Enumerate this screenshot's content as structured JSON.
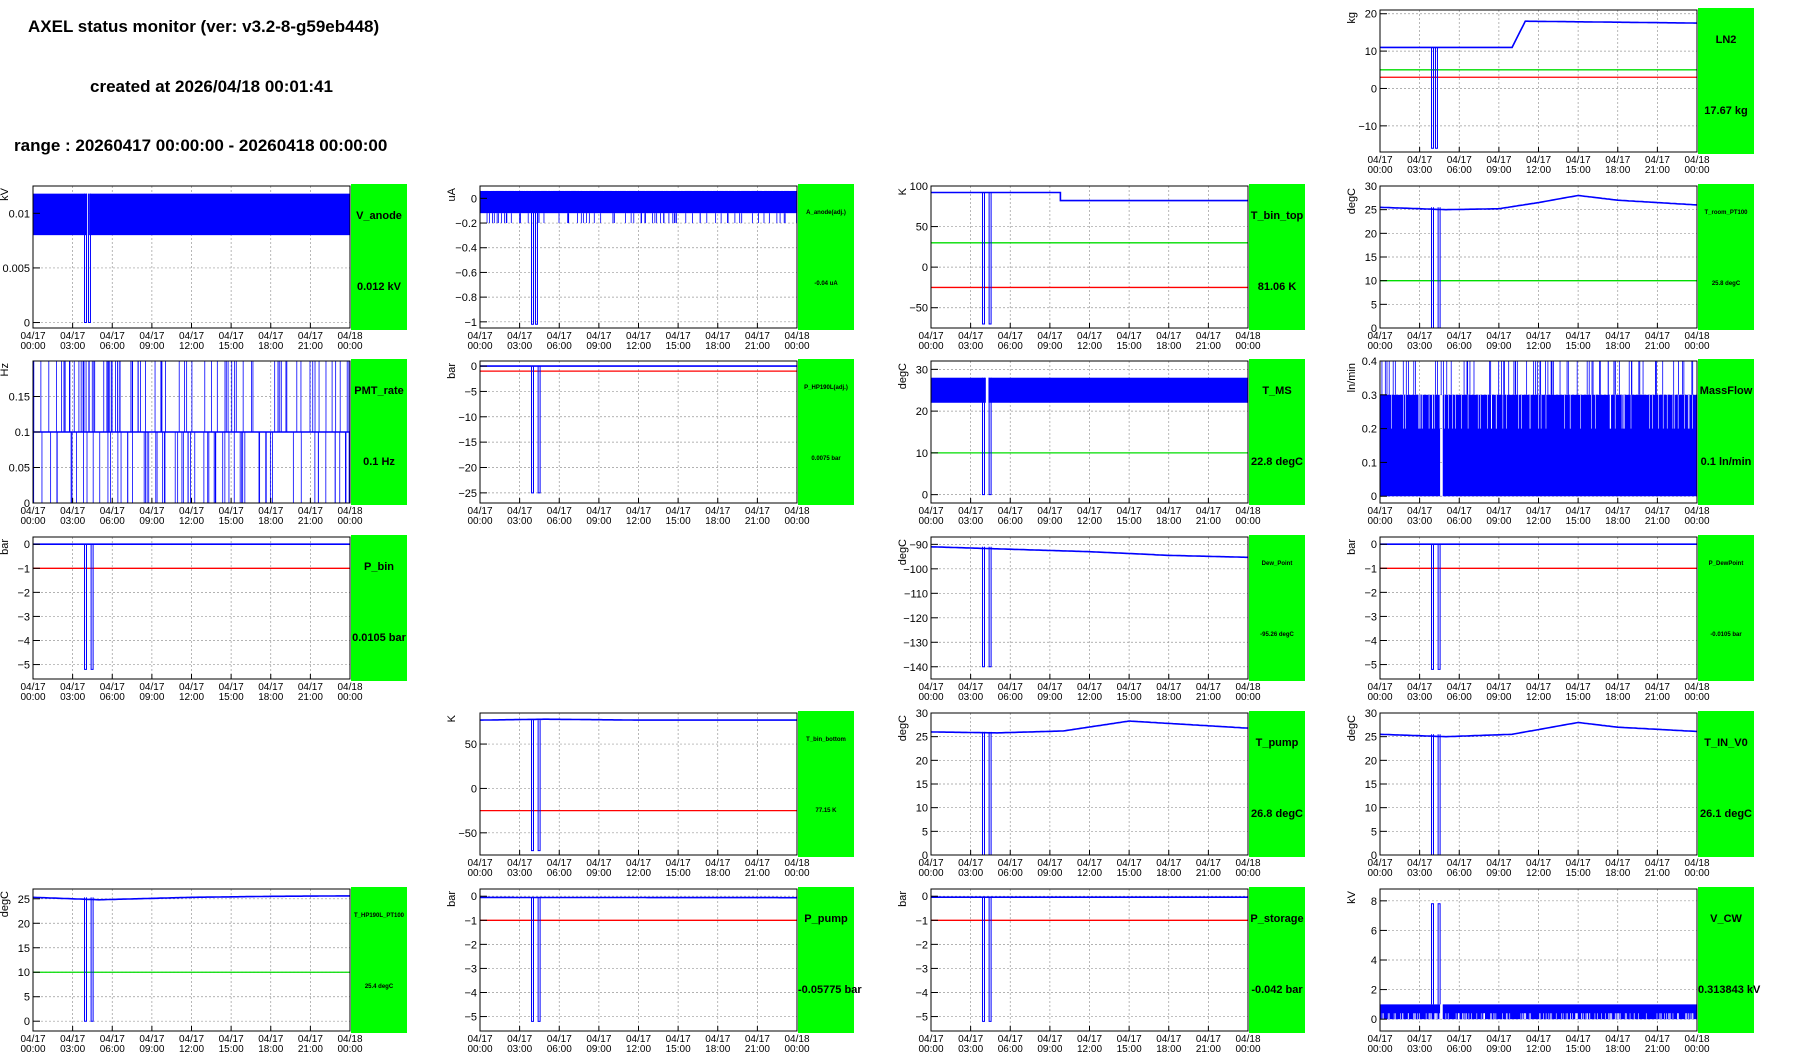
{
  "header": {
    "title": "AXEL status monitor (ver: v3.2-8-g59eb448)",
    "created": "created at 2026/04/18 00:01:41",
    "range": "range : 20260417 00:00:00 - 20260418 00:00:00"
  },
  "colors": {
    "data": "#0000ff",
    "upper_limit": "#00dd00",
    "lower_limit": "#ff0000",
    "label_box": "#00ff00"
  },
  "time_ticks": [
    "04/17\n00:00",
    "04/17\n03:00",
    "04/17\n06:00",
    "04/17\n09:00",
    "04/17\n12:00",
    "04/17\n15:00",
    "04/17\n18:00",
    "04/17\n21:00",
    "04/18\n00:00"
  ],
  "chart_data": [
    {
      "id": "LN2",
      "type": "line",
      "name": "LN2",
      "value": "17.67 kg",
      "ylabel": "kg",
      "ylim": [
        -17,
        21
      ],
      "yticks": [
        -10,
        0,
        10,
        20
      ],
      "ytick_labels": [
        "−10",
        "0",
        "10",
        "20"
      ],
      "green": 5,
      "red": 3,
      "style": "line",
      "base": [
        [
          0,
          11
        ],
        [
          8,
          11
        ],
        [
          9,
          11
        ],
        [
          10,
          11
        ],
        [
          11,
          18
        ],
        [
          24,
          17.5
        ]
      ],
      "dips": [
        3.9,
        4.2
      ],
      "dip_to": -16,
      "small": false
    },
    {
      "id": "V_anode",
      "type": "line",
      "name": "V_anode",
      "value": "0.012 kV",
      "ylabel": "kV",
      "ylim": [
        -0.0005,
        0.0125
      ],
      "yticks": [
        0,
        0.005,
        0.01
      ],
      "ytick_labels": [
        "0",
        "0.005",
        "0.01"
      ],
      "green": null,
      "red": null,
      "style": "band",
      "band": [
        0.008,
        0.0118
      ],
      "gap": [
        4.1,
        4.25
      ],
      "dips": [
        3.9,
        4.2
      ],
      "dip_to": 0,
      "small": false
    },
    {
      "id": "A_anode",
      "type": "line",
      "name": "A_anode(adj.)",
      "value": "-0.04 uA",
      "ylabel": "uA",
      "ylim": [
        -1.05,
        0.1
      ],
      "yticks": [
        -1,
        -0.8,
        -0.6,
        -0.4,
        -0.2,
        0
      ],
      "ytick_labels": [
        "−1",
        "−0.8",
        "−0.6",
        "−0.4",
        "−0.2",
        "0"
      ],
      "green": null,
      "red": null,
      "style": "bandspikes",
      "band": [
        -0.12,
        0.06
      ],
      "spike_lo": -0.2,
      "dips": [
        3.9,
        4.2
      ],
      "dip_to": -1.02,
      "small": true
    },
    {
      "id": "T_bin_top",
      "type": "line",
      "name": "T_bin_top",
      "value": "81.06 K",
      "ylabel": "K",
      "ylim": [
        -75,
        100
      ],
      "yticks": [
        -50,
        0,
        50,
        100
      ],
      "ytick_labels": [
        "−50",
        "0",
        "50",
        "100"
      ],
      "green": 30,
      "red": -25,
      "style": "line",
      "base": [
        [
          0,
          92
        ],
        [
          9.8,
          92
        ],
        [
          9.8,
          82
        ],
        [
          24,
          82
        ]
      ],
      "dips": [
        3.9,
        4.4
      ],
      "dip_to": -70,
      "small": false
    },
    {
      "id": "T_room",
      "type": "line",
      "name": "T_room_PT100",
      "value": "25.8 degC",
      "ylabel": "degC",
      "ylim": [
        0,
        30
      ],
      "yticks": [
        0,
        5,
        10,
        15,
        20,
        25,
        30
      ],
      "ytick_labels": [
        "0",
        "5",
        "10",
        "15",
        "20",
        "25",
        "30"
      ],
      "green": 10,
      "red": null,
      "style": "line",
      "base": [
        [
          0,
          25.5
        ],
        [
          5,
          25
        ],
        [
          9,
          25.2
        ],
        [
          12,
          26.5
        ],
        [
          15,
          28
        ],
        [
          18,
          27
        ],
        [
          24,
          26
        ]
      ],
      "dips": [
        3.9,
        4.4
      ],
      "dip_to": 0,
      "small": true
    },
    {
      "id": "PMT_rate",
      "type": "line",
      "name": "PMT_rate",
      "value": "0.1 Hz",
      "ylabel": "Hz",
      "ylim": [
        0,
        0.2
      ],
      "yticks": [
        0,
        0.05,
        0.1,
        0.15
      ],
      "ytick_labels": [
        "0",
        "0.05",
        "0.1",
        "0.15"
      ],
      "green": null,
      "red": null,
      "style": "pmt",
      "base": [
        [
          0,
          0.1
        ],
        [
          24,
          0.1
        ]
      ],
      "dips": [],
      "dip_to": 0,
      "small": false
    },
    {
      "id": "P_HP190L",
      "type": "line",
      "name": "P_HP190L(adj.)",
      "value": "0.0075 bar",
      "ylabel": "bar",
      "ylim": [
        -27,
        1
      ],
      "yticks": [
        -25,
        -20,
        -15,
        -10,
        -5,
        0
      ],
      "ytick_labels": [
        "−25",
        "−20",
        "−15",
        "−10",
        "−5",
        "0"
      ],
      "green": null,
      "red": -1,
      "style": "line",
      "base": [
        [
          0,
          0
        ],
        [
          24,
          0
        ]
      ],
      "dips": [
        3.9,
        4.4
      ],
      "dip_to": -25,
      "small": true
    },
    {
      "id": "T_MS",
      "type": "line",
      "name": "T_MS",
      "value": "22.8 degC",
      "ylabel": "degC",
      "ylim": [
        -2,
        32
      ],
      "yticks": [
        0,
        10,
        20,
        30
      ],
      "ytick_labels": [
        "0",
        "10",
        "20",
        "30"
      ],
      "green": 10,
      "red": null,
      "style": "band",
      "band": [
        22,
        28
      ],
      "gap": [
        4.15,
        4.35
      ],
      "dips": [
        3.9,
        4.4
      ],
      "dip_to": 0,
      "small": false
    },
    {
      "id": "MassFlow",
      "type": "line",
      "name": "MassFlow",
      "value": "0.1 ln/min",
      "ylabel": "ln/min",
      "ylim": [
        -0.02,
        0.4
      ],
      "yticks": [
        0,
        0.1,
        0.2,
        0.3,
        0.4
      ],
      "ytick_labels": [
        "0",
        "0.1",
        "0.2",
        "0.3",
        "0.4"
      ],
      "green": null,
      "red": null,
      "style": "mflow",
      "band": [
        0,
        0.3
      ],
      "gap": [
        4.55,
        4.75
      ],
      "dips": [],
      "dip_to": 0,
      "small": false
    },
    {
      "id": "P_bin",
      "type": "line",
      "name": "P_bin",
      "value": "0.0105 bar",
      "ylabel": "bar",
      "ylim": [
        -5.6,
        0.3
      ],
      "yticks": [
        -5,
        -4,
        -3,
        -2,
        -1,
        0
      ],
      "ytick_labels": [
        "−5",
        "−4",
        "−3",
        "−2",
        "−1",
        "0"
      ],
      "green": null,
      "red": -1,
      "style": "line",
      "base": [
        [
          0,
          0
        ],
        [
          24,
          0
        ]
      ],
      "dips": [
        3.9,
        4.4
      ],
      "dip_to": -5.2,
      "small": false
    },
    {
      "id": "Dew_Point",
      "type": "line",
      "name": "Dew_Point",
      "value": "-95.26 degC",
      "ylabel": "degC",
      "ylim": [
        -145,
        -87
      ],
      "yticks": [
        -140,
        -130,
        -120,
        -110,
        -100,
        -90
      ],
      "ytick_labels": [
        "−140",
        "−130",
        "−120",
        "−110",
        "−100",
        "−90"
      ],
      "green": null,
      "red": null,
      "style": "line",
      "base": [
        [
          0,
          -91
        ],
        [
          6,
          -92
        ],
        [
          12,
          -93
        ],
        [
          18,
          -94.5
        ],
        [
          24,
          -95.3
        ]
      ],
      "dips": [
        3.9,
        4.4
      ],
      "dip_to": -140,
      "small": true
    },
    {
      "id": "P_DewPoint",
      "type": "line",
      "name": "P_DewPoint",
      "value": "-0.0105 bar",
      "ylabel": "bar",
      "ylim": [
        -5.6,
        0.3
      ],
      "yticks": [
        -5,
        -4,
        -3,
        -2,
        -1,
        0
      ],
      "ytick_labels": [
        "−5",
        "−4",
        "−3",
        "−2",
        "−1",
        "0"
      ],
      "green": null,
      "red": -1,
      "style": "line",
      "base": [
        [
          0,
          0
        ],
        [
          24,
          0
        ]
      ],
      "dips": [
        3.9,
        4.4
      ],
      "dip_to": -5.2,
      "small": true
    },
    {
      "id": "T_bin_bottom",
      "type": "line",
      "name": "T_bin_bottom",
      "value": "77.15 K",
      "ylabel": "K",
      "ylim": [
        -75,
        85
      ],
      "yticks": [
        -50,
        0,
        50
      ],
      "ytick_labels": [
        "−50",
        "0",
        "50"
      ],
      "green": null,
      "red": -25,
      "style": "line",
      "base": [
        [
          0,
          77
        ],
        [
          5,
          78
        ],
        [
          12,
          77
        ],
        [
          24,
          77
        ]
      ],
      "dips": [
        3.9,
        4.4
      ],
      "dip_to": -70,
      "small": true
    },
    {
      "id": "T_pump",
      "type": "line",
      "name": "T_pump",
      "value": "26.8 degC",
      "ylabel": "degC",
      "ylim": [
        0,
        30
      ],
      "yticks": [
        0,
        5,
        10,
        15,
        20,
        25,
        30
      ],
      "ytick_labels": [
        "0",
        "5",
        "10",
        "15",
        "20",
        "25",
        "30"
      ],
      "green": null,
      "red": null,
      "style": "line",
      "base": [
        [
          0,
          26
        ],
        [
          5,
          25.8
        ],
        [
          10,
          26.2
        ],
        [
          15,
          28.3
        ],
        [
          18,
          27.8
        ],
        [
          24,
          26.8
        ]
      ],
      "dips": [
        3.9,
        4.4
      ],
      "dip_to": 0,
      "small": false
    },
    {
      "id": "T_IN_V0",
      "type": "line",
      "name": "T_IN_V0",
      "value": "26.1 degC",
      "ylabel": "degC",
      "ylim": [
        0,
        30
      ],
      "yticks": [
        0,
        5,
        10,
        15,
        20,
        25,
        30
      ],
      "ytick_labels": [
        "0",
        "5",
        "10",
        "15",
        "20",
        "25",
        "30"
      ],
      "green": null,
      "red": null,
      "style": "line",
      "base": [
        [
          0,
          25.5
        ],
        [
          5,
          25
        ],
        [
          10,
          25.5
        ],
        [
          15,
          28
        ],
        [
          18,
          27
        ],
        [
          24,
          26.1
        ]
      ],
      "dips": [
        3.9,
        4.4
      ],
      "dip_to": 0,
      "small": false
    },
    {
      "id": "T_HP190L",
      "type": "line",
      "name": "T_HP190L_PT100",
      "value": "25.4 degC",
      "ylabel": "degC",
      "ylim": [
        -2,
        27
      ],
      "yticks": [
        0,
        5,
        10,
        15,
        20,
        25
      ],
      "ytick_labels": [
        "0",
        "5",
        "10",
        "15",
        "20",
        "25"
      ],
      "green": 10,
      "red": null,
      "style": "line",
      "base": [
        [
          0,
          25.3
        ],
        [
          5,
          24.8
        ],
        [
          12,
          25.3
        ],
        [
          18,
          25.5
        ],
        [
          24,
          25.6
        ]
      ],
      "dips": [
        3.9,
        4.4
      ],
      "dip_to": 0,
      "small": true
    },
    {
      "id": "P_pump",
      "type": "line",
      "name": "P_pump",
      "value": "-0.05775 bar",
      "ylabel": "bar",
      "ylim": [
        -5.6,
        0.3
      ],
      "yticks": [
        -5,
        -4,
        -3,
        -2,
        -1,
        0
      ],
      "ytick_labels": [
        "−5",
        "−4",
        "−3",
        "−2",
        "−1",
        "0"
      ],
      "green": null,
      "red": -1,
      "style": "line",
      "base": [
        [
          0,
          -0.05
        ],
        [
          24,
          -0.06
        ]
      ],
      "dips": [
        3.9,
        4.4
      ],
      "dip_to": -5.2,
      "small": false
    },
    {
      "id": "P_storage",
      "type": "line",
      "name": "P_storage",
      "value": "-0.042 bar",
      "ylabel": "bar",
      "ylim": [
        -5.6,
        0.3
      ],
      "yticks": [
        -5,
        -4,
        -3,
        -2,
        -1,
        0
      ],
      "ytick_labels": [
        "−5",
        "−4",
        "−3",
        "−2",
        "−1",
        "0"
      ],
      "green": null,
      "red": -1,
      "style": "line",
      "base": [
        [
          0,
          -0.04
        ],
        [
          24,
          -0.04
        ]
      ],
      "dips": [
        3.9,
        4.4
      ],
      "dip_to": -5.2,
      "small": false
    },
    {
      "id": "V_CW",
      "type": "line",
      "name": "V_CW",
      "value": "0.313843 kV",
      "ylabel": "kV",
      "ylim": [
        -0.8,
        8.8
      ],
      "yticks": [
        0,
        2,
        4,
        6,
        8
      ],
      "ytick_labels": [
        "0",
        "2",
        "4",
        "6",
        "8"
      ],
      "green": null,
      "red": null,
      "style": "vcw",
      "band": [
        0,
        1
      ],
      "gap": [
        4.55,
        4.75
      ],
      "dips": [
        3.9,
        4.4
      ],
      "dip_to": 7.8,
      "small": false
    }
  ]
}
